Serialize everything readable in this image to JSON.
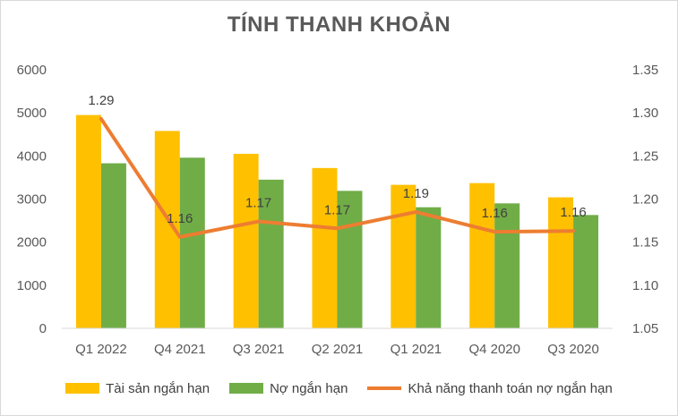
{
  "chart_data": {
    "type": "bar",
    "title": "TÍNH THANH KHOẢN",
    "categories": [
      "Q1 2022",
      "Q4 2021",
      "Q3 2021",
      "Q2 2021",
      "Q1 2021",
      "Q4 2020",
      "Q3 2020"
    ],
    "series": [
      {
        "name": "Tài sản ngắn hạn",
        "type": "bar",
        "axis": "left",
        "color": "#FFC000",
        "values": [
          4950,
          4580,
          4050,
          3720,
          3330,
          3370,
          3040
        ]
      },
      {
        "name": "Nợ ngắn hạn",
        "type": "bar",
        "axis": "left",
        "color": "#70AD47",
        "values": [
          3830,
          3960,
          3450,
          3190,
          2810,
          2900,
          2630
        ]
      },
      {
        "name": "Khả năng thanh toán nợ ngắn hạn",
        "type": "line",
        "axis": "right",
        "color": "#ED7D31",
        "values": [
          1.293,
          1.156,
          1.174,
          1.166,
          1.185,
          1.162,
          1.163
        ],
        "data_labels": [
          "1.29",
          "1.16",
          "1.17",
          "1.17",
          "1.19",
          "1.16",
          "1.16"
        ]
      }
    ],
    "y_left": {
      "min": 0,
      "max": 6000,
      "ticks": [
        "0",
        "1000",
        "2000",
        "3000",
        "4000",
        "5000",
        "6000"
      ]
    },
    "y_right": {
      "min": 1.05,
      "max": 1.35,
      "ticks": [
        "1.05",
        "1.10",
        "1.15",
        "1.20",
        "1.25",
        "1.30",
        "1.35"
      ]
    },
    "grid": false,
    "legend_position": "bottom"
  }
}
